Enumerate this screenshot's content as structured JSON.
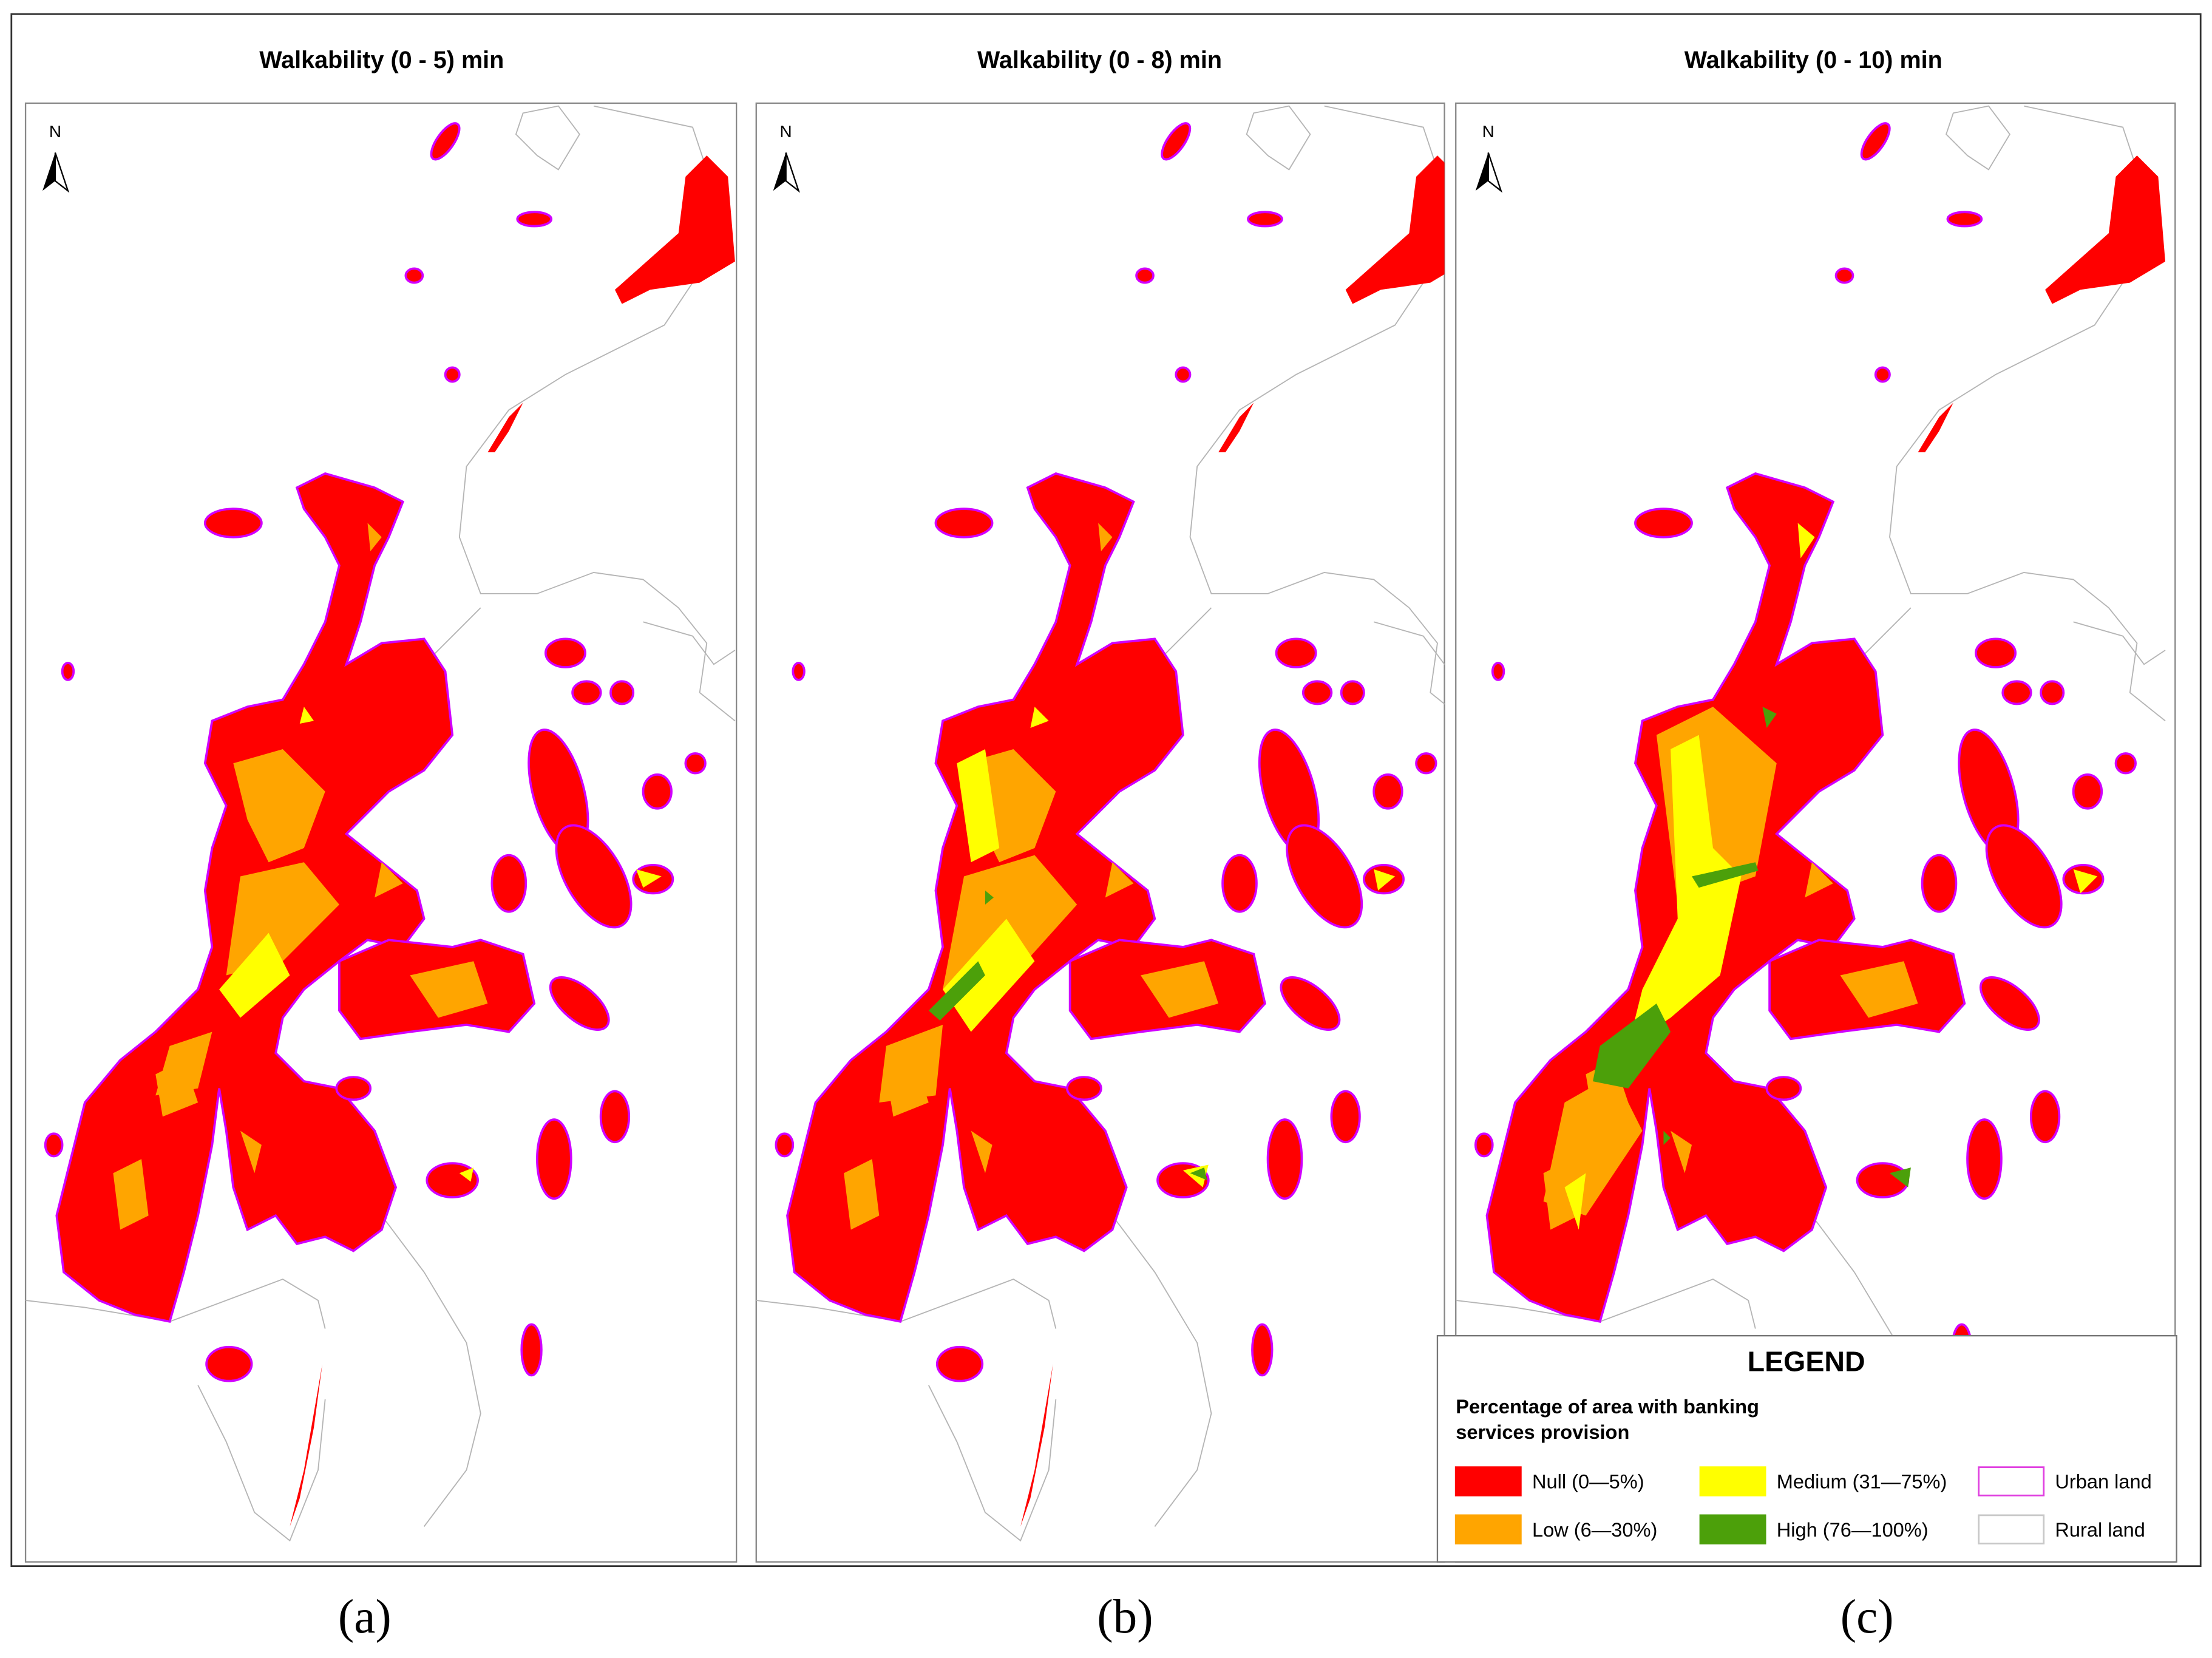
{
  "panels": [
    {
      "title": "Walkability (0 - 5) min",
      "caption": "(a)"
    },
    {
      "title": "Walkability (0 - 8) min",
      "caption": "(b)"
    },
    {
      "title": "Walkability (0 - 10) min",
      "caption": "(c)"
    }
  ],
  "north": "N",
  "legend": {
    "title": "LEGEND",
    "subtitle": [
      "Percentage of area with banking",
      "services provision"
    ],
    "items": [
      {
        "label": "Null (0—5%)",
        "fill": "#ff0000",
        "stroke": "#ff0000"
      },
      {
        "label": "Low (6—30%)",
        "fill": "#ffa500",
        "stroke": "#ffa500"
      },
      {
        "label": "Medium (31—75%)",
        "fill": "#ffff00",
        "stroke": "#ffff00"
      },
      {
        "label": "High (76—100%)",
        "fill": "#4ca00a",
        "stroke": "#4ca00a"
      },
      {
        "label": "Urban land",
        "fill": "#ffffff",
        "stroke": "#e040e0"
      },
      {
        "label": "Rural land",
        "fill": "#ffffff",
        "stroke": "#c8c8c8"
      }
    ]
  }
}
